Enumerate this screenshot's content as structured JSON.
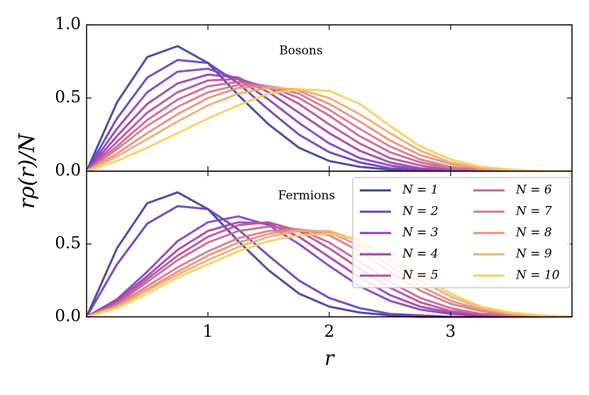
{
  "chart_data": [
    {
      "type": "line",
      "annotation": "Bosons",
      "ylabel": "rρ(r)/N",
      "x": [
        0,
        0.25,
        0.5,
        0.75,
        1,
        1.25,
        1.5,
        1.75,
        2,
        2.25,
        2.5,
        2.75,
        3,
        3.25,
        3.5,
        3.75,
        4
      ],
      "xlim": [
        0,
        4
      ],
      "xticks": [
        1,
        2,
        3
      ],
      "ylim": [
        0,
        1
      ],
      "yticks": [
        {
          "value": 0,
          "label": "0.0"
        },
        {
          "value": 0.5,
          "label": "0.5"
        },
        {
          "value": 1,
          "label": "1.0"
        }
      ],
      "series": [
        {
          "color": "#3f3f9f",
          "values": [
            0,
            0.47,
            0.78,
            0.855,
            0.74,
            0.52,
            0.32,
            0.16,
            0.07,
            0.03,
            0.01,
            0,
            0,
            0,
            0,
            0,
            0
          ]
        },
        {
          "color": "#6b3fb8",
          "values": [
            0,
            0.36,
            0.64,
            0.76,
            0.74,
            0.6,
            0.42,
            0.25,
            0.13,
            0.06,
            0.02,
            0.01,
            0,
            0,
            0,
            0,
            0
          ]
        },
        {
          "color": "#8a3fc0",
          "values": [
            0,
            0.29,
            0.54,
            0.68,
            0.7,
            0.63,
            0.49,
            0.33,
            0.19,
            0.09,
            0.04,
            0.01,
            0,
            0,
            0,
            0,
            0
          ]
        },
        {
          "color": "#a040b0",
          "values": [
            0,
            0.24,
            0.46,
            0.6,
            0.66,
            0.64,
            0.54,
            0.4,
            0.26,
            0.14,
            0.06,
            0.02,
            0.01,
            0,
            0,
            0,
            0
          ]
        },
        {
          "color": "#b5509f",
          "values": [
            0,
            0.2,
            0.4,
            0.54,
            0.62,
            0.63,
            0.57,
            0.46,
            0.32,
            0.19,
            0.09,
            0.04,
            0.01,
            0,
            0,
            0,
            0
          ]
        },
        {
          "color": "#c96595",
          "values": [
            0,
            0.17,
            0.35,
            0.49,
            0.58,
            0.61,
            0.58,
            0.5,
            0.38,
            0.24,
            0.13,
            0.06,
            0.02,
            0.01,
            0,
            0,
            0
          ]
        },
        {
          "color": "#d8788a",
          "values": [
            0,
            0.15,
            0.31,
            0.44,
            0.54,
            0.59,
            0.58,
            0.53,
            0.42,
            0.29,
            0.17,
            0.08,
            0.03,
            0.01,
            0,
            0,
            0
          ]
        },
        {
          "color": "#e58f80",
          "values": [
            0,
            0.12,
            0.26,
            0.39,
            0.5,
            0.57,
            0.58,
            0.55,
            0.46,
            0.34,
            0.21,
            0.11,
            0.05,
            0.02,
            0,
            0,
            0
          ]
        },
        {
          "color": "#f0ac70",
          "values": [
            0,
            0.1,
            0.22,
            0.34,
            0.45,
            0.53,
            0.57,
            0.56,
            0.5,
            0.39,
            0.26,
            0.14,
            0.06,
            0.02,
            0.01,
            0,
            0
          ]
        },
        {
          "color": "#f8cf5a",
          "values": [
            0,
            0.07,
            0.16,
            0.26,
            0.36,
            0.45,
            0.53,
            0.56,
            0.55,
            0.46,
            0.31,
            0.17,
            0.08,
            0.03,
            0.01,
            0,
            0
          ]
        }
      ]
    },
    {
      "type": "line",
      "annotation": "Fermions",
      "xlabel": "r",
      "legend": "upper right",
      "x": [
        0,
        0.25,
        0.5,
        0.75,
        1,
        1.25,
        1.5,
        1.75,
        2,
        2.25,
        2.5,
        2.75,
        3,
        3.25,
        3.5,
        3.75,
        4
      ],
      "xlim": [
        0,
        4
      ],
      "xticks": [
        1,
        2,
        3
      ],
      "ylim": [
        0,
        1
      ],
      "yticks": [
        {
          "value": 0,
          "label": "0.0"
        },
        {
          "value": 0.5,
          "label": "0.5"
        }
      ],
      "series": [
        {
          "name": "N = 1",
          "color": "#3f3f9f",
          "values": [
            0,
            0.47,
            0.78,
            0.855,
            0.74,
            0.52,
            0.32,
            0.16,
            0.07,
            0.03,
            0.01,
            0,
            0,
            0,
            0,
            0,
            0
          ]
        },
        {
          "name": "N = 2",
          "color": "#6b3fb8",
          "values": [
            0,
            0.36,
            0.64,
            0.76,
            0.74,
            0.6,
            0.42,
            0.25,
            0.13,
            0.06,
            0.02,
            0.01,
            0,
            0,
            0,
            0,
            0
          ]
        },
        {
          "name": "N = 3",
          "color": "#8a3fc0",
          "values": [
            0,
            0.12,
            0.31,
            0.52,
            0.65,
            0.69,
            0.63,
            0.5,
            0.35,
            0.21,
            0.11,
            0.05,
            0.02,
            0.01,
            0,
            0,
            0
          ]
        },
        {
          "name": "N = 4",
          "color": "#a040b0",
          "values": [
            0,
            0.11,
            0.28,
            0.46,
            0.59,
            0.65,
            0.64,
            0.55,
            0.41,
            0.27,
            0.15,
            0.07,
            0.03,
            0.01,
            0,
            0,
            0
          ]
        },
        {
          "name": "N = 5",
          "color": "#b5509f",
          "values": [
            0,
            0.1,
            0.26,
            0.42,
            0.55,
            0.63,
            0.65,
            0.59,
            0.47,
            0.33,
            0.2,
            0.1,
            0.04,
            0.02,
            0,
            0,
            0
          ]
        },
        {
          "name": "N = 6",
          "color": "#c96595",
          "values": [
            0,
            0.09,
            0.24,
            0.39,
            0.51,
            0.59,
            0.62,
            0.6,
            0.51,
            0.38,
            0.24,
            0.13,
            0.06,
            0.02,
            0.01,
            0,
            0
          ]
        },
        {
          "name": "N = 7",
          "color": "#d8788a",
          "values": [
            0,
            0.08,
            0.21,
            0.34,
            0.45,
            0.54,
            0.59,
            0.6,
            0.56,
            0.45,
            0.31,
            0.18,
            0.09,
            0.04,
            0.01,
            0,
            0
          ]
        },
        {
          "name": "N = 8",
          "color": "#e58f80",
          "values": [
            0,
            0.07,
            0.19,
            0.31,
            0.42,
            0.51,
            0.57,
            0.6,
            0.58,
            0.49,
            0.35,
            0.21,
            0.11,
            0.05,
            0.02,
            0,
            0
          ]
        },
        {
          "name": "N = 9",
          "color": "#f0ac70",
          "values": [
            0,
            0.07,
            0.18,
            0.29,
            0.39,
            0.48,
            0.55,
            0.59,
            0.59,
            0.52,
            0.39,
            0.25,
            0.14,
            0.06,
            0.02,
            0.01,
            0
          ]
        },
        {
          "name": "N = 10",
          "color": "#f8cf5a",
          "values": [
            0,
            0.06,
            0.16,
            0.27,
            0.36,
            0.45,
            0.52,
            0.56,
            0.57,
            0.53,
            0.42,
            0.28,
            0.16,
            0.07,
            0.03,
            0.01,
            0
          ]
        }
      ]
    }
  ]
}
